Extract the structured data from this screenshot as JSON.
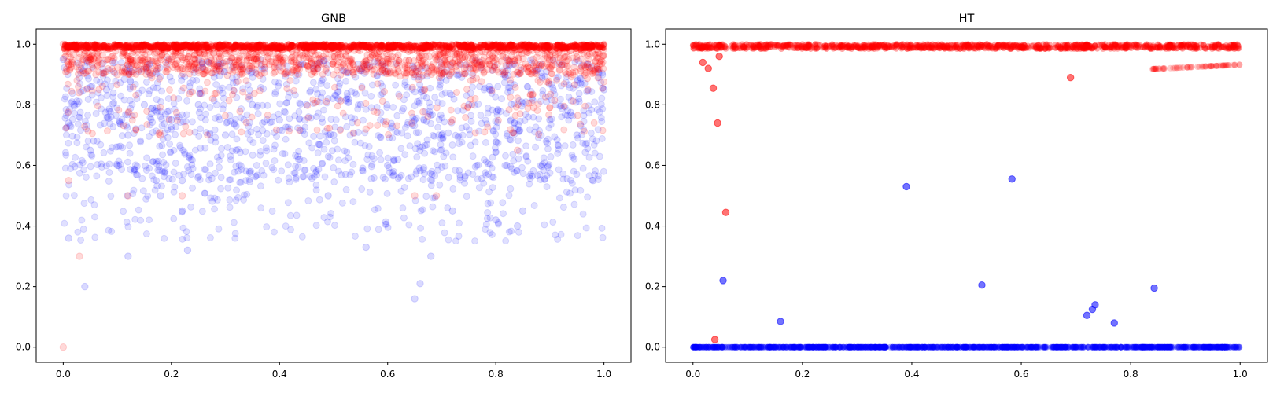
{
  "chart_data": [
    {
      "type": "scatter",
      "title": "GNB",
      "xlim": [
        -0.05,
        1.05
      ],
      "ylim": [
        -0.05,
        1.05
      ],
      "xticks": [
        "0.0",
        "0.2",
        "0.4",
        "0.6",
        "0.8",
        "1.0"
      ],
      "yticks": [
        "0.0",
        "0.2",
        "0.4",
        "0.6",
        "0.8",
        "1.0"
      ],
      "grid": false,
      "series": [
        {
          "color": "#0000ff",
          "alpha": 0.12,
          "description": "dense band of points between ~0.5 and 1.0 across full x range with troughs down to ~0.35-0.4",
          "x": [
            0.0,
            0.01,
            0.02,
            0.05,
            0.08,
            0.1,
            0.12,
            0.15,
            0.18,
            0.2,
            0.22,
            0.25,
            0.3,
            0.32,
            0.35,
            0.4,
            0.45,
            0.49,
            0.5,
            0.55,
            0.6,
            0.65,
            0.7,
            0.72,
            0.75,
            0.8,
            0.82,
            0.84,
            0.85,
            0.9,
            0.95,
            0.98,
            1.0,
            0.04,
            0.12,
            0.22,
            0.23,
            0.56,
            0.65,
            0.66,
            0.68
          ],
          "y": [
            0.95,
            0.36,
            0.8,
            0.65,
            0.85,
            0.6,
            0.7,
            0.8,
            0.5,
            0.75,
            0.55,
            0.8,
            0.7,
            0.65,
            0.8,
            0.75,
            0.8,
            0.5,
            0.7,
            0.8,
            0.6,
            0.75,
            0.7,
            0.45,
            0.8,
            0.42,
            0.6,
            0.4,
            0.45,
            0.75,
            0.7,
            0.55,
            0.85,
            0.2,
            0.3,
            0.45,
            0.32,
            0.33,
            0.16,
            0.21,
            0.3
          ]
        },
        {
          "color": "#ff0000",
          "alpha": 0.12,
          "description": "dense band of points between ~0.7 and 1.0 across full x range",
          "x": [
            0.0,
            0.01,
            0.05,
            0.1,
            0.15,
            0.18,
            0.2,
            0.3,
            0.4,
            0.5,
            0.56,
            0.6,
            0.7,
            0.72,
            0.8,
            0.84,
            0.9,
            0.97,
            1.0,
            0.0,
            0.03,
            0.12,
            0.22,
            0.65,
            0.69
          ],
          "y": [
            1.0,
            0.55,
            0.95,
            0.9,
            0.95,
            0.7,
            0.95,
            1.0,
            0.95,
            0.9,
            0.72,
            0.95,
            0.9,
            0.75,
            0.95,
            0.65,
            0.95,
            0.85,
            1.0,
            0.0,
            0.3,
            0.5,
            0.5,
            0.5,
            0.5
          ]
        }
      ]
    },
    {
      "type": "scatter",
      "title": "HT",
      "xlim": [
        -0.05,
        1.05
      ],
      "ylim": [
        -0.05,
        1.05
      ],
      "xticks": [
        "0.0",
        "0.2",
        "0.4",
        "0.6",
        "0.8",
        "1.0"
      ],
      "yticks": [
        "0.0",
        "0.2",
        "0.4",
        "0.6",
        "0.8",
        "1.0"
      ],
      "grid": false,
      "series": [
        {
          "color": "#0000ff",
          "alpha": 0.12,
          "description": "dense line of points at y=0 across full x range plus a few outliers",
          "x": [
            0.39,
            0.528,
            0.583,
            0.16,
            0.055,
            0.72,
            0.73,
            0.735,
            0.77,
            0.843
          ],
          "y": [
            0.53,
            0.205,
            0.555,
            0.085,
            0.22,
            0.105,
            0.125,
            0.14,
            0.08,
            0.195
          ]
        },
        {
          "color": "#ff0000",
          "alpha": 0.12,
          "description": "dense line of points near y=1 across full x range plus a few outliers",
          "x": [
            0.018,
            0.028,
            0.037,
            0.045,
            0.048,
            0.06,
            0.69,
            0.04
          ],
          "y": [
            0.94,
            0.92,
            0.855,
            0.74,
            0.96,
            0.445,
            0.89,
            0.025
          ]
        }
      ]
    }
  ]
}
